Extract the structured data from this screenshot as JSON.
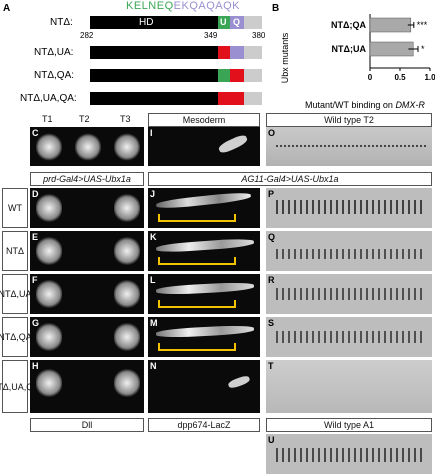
{
  "panel_a": {
    "letter": "A",
    "sequence": [
      {
        "text": "KELNEQ",
        "color": "#3aa655"
      },
      {
        "text": "EKQAQAQK",
        "color": "#9a8fd0"
      }
    ],
    "constructs": [
      {
        "label": "NTΔ:",
        "domain_label": "HD",
        "u_label": "U",
        "q_label": "Q"
      },
      {
        "label": "NTΔ,UA:"
      },
      {
        "label": "NTΔ,QA:"
      },
      {
        "label": "NTΔ,UA,QA:"
      }
    ],
    "positions": [
      "282",
      "349",
      "380"
    ]
  },
  "panel_b": {
    "letter": "B",
    "ylabel": "Ubx mutants",
    "xlabel": "Mutant/WT binding on DMX-R",
    "chart_data": {
      "type": "bar",
      "orientation": "horizontal",
      "categories": [
        "NTΔ;QA",
        "NTΔ;UA"
      ],
      "values": [
        0.68,
        0.72
      ],
      "errors": [
        0.05,
        0.08
      ],
      "significance": [
        "***",
        "*"
      ],
      "xlim": [
        0,
        1.0
      ],
      "xticks": [
        "0",
        "0.5",
        "1.0"
      ],
      "xlabel": "Mutant/WT binding on DMX-R",
      "ylabel": "Ubx mutants"
    }
  },
  "column_headers": {
    "t1": "T1",
    "t2": "T2",
    "t3": "T3",
    "mesoderm": "Mesoderm",
    "wild_type_t2": "Wild type T2",
    "driver_left": "prd-Gal4>UAS-Ubx1a",
    "driver_right": "AG11-Gal4>UAS-Ubx1a",
    "bottom_left": "Dll",
    "bottom_mid": "dpp674-LacZ",
    "wild_type_a1": "Wild type A1"
  },
  "row_labels": [
    "WT",
    "NTΔ",
    "NTΔ,UA",
    "NTΔ,QA",
    "NTΔ,UA,QA"
  ],
  "panel_letters": {
    "c": "C",
    "d": "D",
    "e": "E",
    "f": "F",
    "g": "G",
    "h": "H",
    "i": "I",
    "j": "J",
    "k": "K",
    "l": "L",
    "m": "M",
    "n": "N",
    "o": "O",
    "p": "P",
    "q": "Q",
    "r": "R",
    "s": "S",
    "t": "T",
    "u": "U"
  },
  "colors": {
    "hd_black": "#000000",
    "u_green": "#3aa655",
    "q_purple": "#9a8fd0",
    "alanine_red": "#e2101b",
    "tail_gray": "#cccccc",
    "bracket_yellow": "#f2c200"
  }
}
